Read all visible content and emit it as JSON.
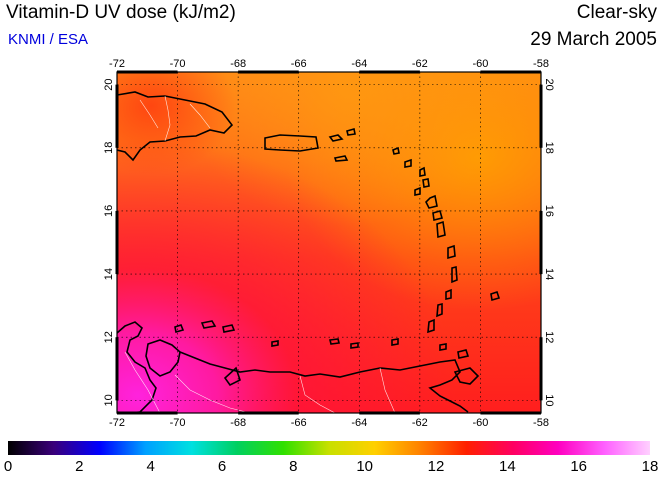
{
  "header": {
    "title": "Vitamin-D UV dose (kJ/m2)",
    "credit": "KNMI / ESA",
    "condition": "Clear-sky",
    "date": "29 March 2005"
  },
  "map": {
    "lon_ticks": [
      "-72",
      "-70",
      "-68",
      "-66",
      "-64",
      "-62",
      "-60",
      "-58"
    ],
    "lat_ticks": [
      "10",
      "12",
      "14",
      "16",
      "18",
      "20"
    ],
    "lon_range": [
      -72,
      -58
    ],
    "lat_range": [
      9.6,
      20.4
    ],
    "grid": true
  },
  "colorbar": {
    "labels": [
      "0",
      "2",
      "4",
      "6",
      "8",
      "10",
      "12",
      "14",
      "16",
      "18"
    ],
    "range": [
      0,
      18
    ],
    "colors": [
      "#000000",
      "#3a007a",
      "#0000ff",
      "#00a0ff",
      "#00e0e0",
      "#00d060",
      "#30e000",
      "#c8e000",
      "#ffd000",
      "#ff8000",
      "#ff2000",
      "#ff0060",
      "#ff00c0",
      "#ff60ff",
      "#ffd0ff"
    ]
  }
}
